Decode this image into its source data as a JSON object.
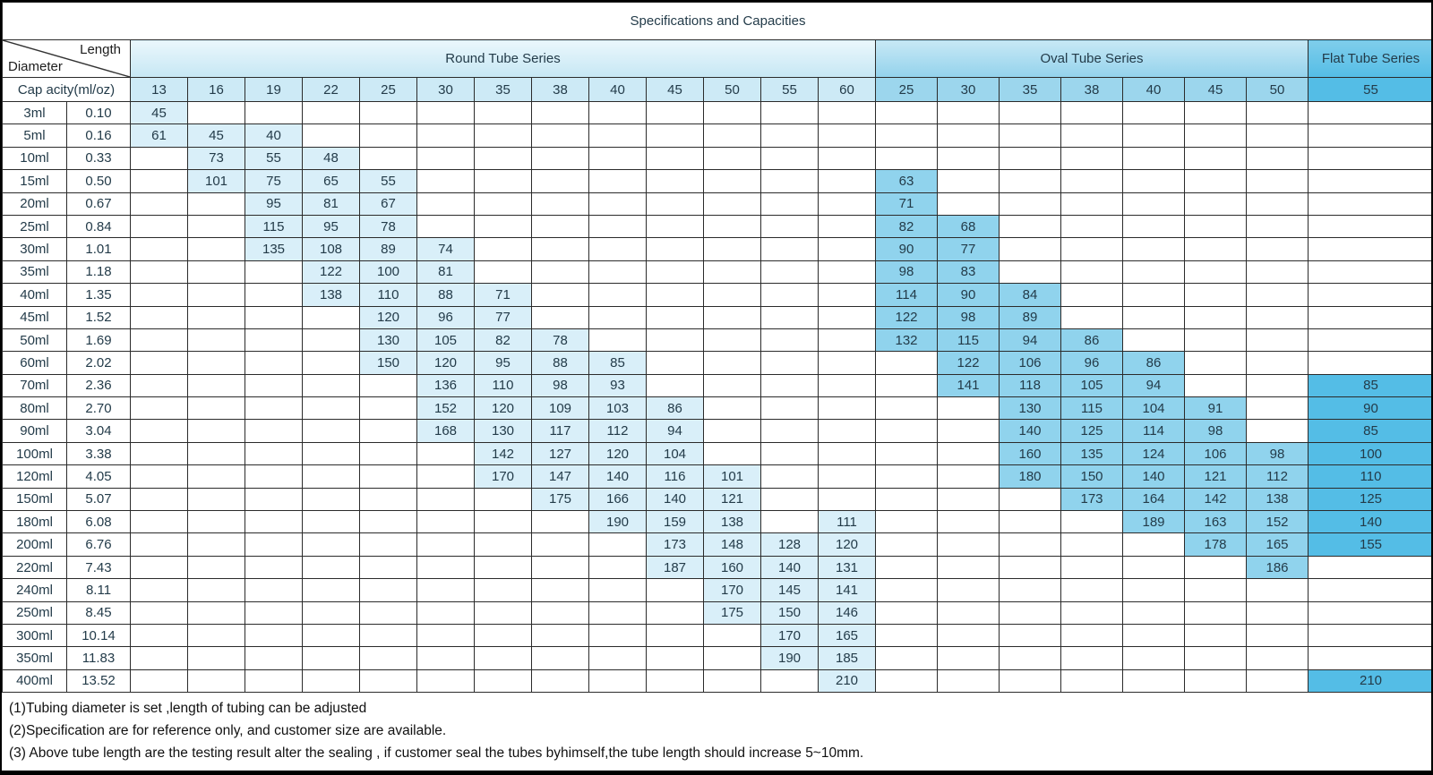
{
  "title": "Specifications and Capacities",
  "corner": {
    "top": "Length",
    "bottom": "Diameter"
  },
  "capacity_label": "Cap acity(ml/oz)",
  "series": [
    {
      "name": "Round Tube Series",
      "key": "round",
      "columns": [
        "13",
        "16",
        "19",
        "22",
        "25",
        "30",
        "35",
        "38",
        "40",
        "45",
        "50",
        "55",
        "60"
      ]
    },
    {
      "name": "Oval Tube Series",
      "key": "oval",
      "columns": [
        "25",
        "30",
        "35",
        "38",
        "40",
        "45",
        "50"
      ]
    },
    {
      "name": "Flat Tube Series",
      "key": "flat",
      "columns": [
        "55"
      ]
    }
  ],
  "rows": [
    {
      "ml": "3ml",
      "oz": "0.10",
      "round": [
        45,
        null,
        null,
        null,
        null,
        null,
        null,
        null,
        null,
        null,
        null,
        null,
        null
      ],
      "oval": [
        null,
        null,
        null,
        null,
        null,
        null,
        null
      ],
      "flat": [
        null
      ]
    },
    {
      "ml": "5ml",
      "oz": "0.16",
      "round": [
        61,
        45,
        40,
        null,
        null,
        null,
        null,
        null,
        null,
        null,
        null,
        null,
        null
      ],
      "oval": [
        null,
        null,
        null,
        null,
        null,
        null,
        null
      ],
      "flat": [
        null
      ]
    },
    {
      "ml": "10ml",
      "oz": "0.33",
      "round": [
        null,
        73,
        55,
        48,
        null,
        null,
        null,
        null,
        null,
        null,
        null,
        null,
        null
      ],
      "oval": [
        null,
        null,
        null,
        null,
        null,
        null,
        null
      ],
      "flat": [
        null
      ]
    },
    {
      "ml": "15ml",
      "oz": "0.50",
      "round": [
        null,
        101,
        75,
        65,
        55,
        null,
        null,
        null,
        null,
        null,
        null,
        null,
        null
      ],
      "oval": [
        63,
        null,
        null,
        null,
        null,
        null,
        null
      ],
      "flat": [
        null
      ]
    },
    {
      "ml": "20ml",
      "oz": "0.67",
      "round": [
        null,
        null,
        95,
        81,
        67,
        null,
        null,
        null,
        null,
        null,
        null,
        null,
        null
      ],
      "oval": [
        71,
        null,
        null,
        null,
        null,
        null,
        null
      ],
      "flat": [
        null
      ]
    },
    {
      "ml": "25ml",
      "oz": "0.84",
      "round": [
        null,
        null,
        115,
        95,
        78,
        null,
        null,
        null,
        null,
        null,
        null,
        null,
        null
      ],
      "oval": [
        82,
        68,
        null,
        null,
        null,
        null,
        null
      ],
      "flat": [
        null
      ]
    },
    {
      "ml": "30ml",
      "oz": "1.01",
      "round": [
        null,
        null,
        135,
        108,
        89,
        74,
        null,
        null,
        null,
        null,
        null,
        null,
        null
      ],
      "oval": [
        90,
        77,
        null,
        null,
        null,
        null,
        null
      ],
      "flat": [
        null
      ]
    },
    {
      "ml": "35ml",
      "oz": "1.18",
      "round": [
        null,
        null,
        null,
        122,
        100,
        81,
        null,
        null,
        null,
        null,
        null,
        null,
        null
      ],
      "oval": [
        98,
        83,
        null,
        null,
        null,
        null,
        null
      ],
      "flat": [
        null
      ]
    },
    {
      "ml": "40ml",
      "oz": "1.35",
      "round": [
        null,
        null,
        null,
        138,
        110,
        88,
        71,
        null,
        null,
        null,
        null,
        null,
        null
      ],
      "oval": [
        114,
        90,
        84,
        null,
        null,
        null,
        null
      ],
      "flat": [
        null
      ]
    },
    {
      "ml": "45ml",
      "oz": "1.52",
      "round": [
        null,
        null,
        null,
        null,
        120,
        96,
        77,
        null,
        null,
        null,
        null,
        null,
        null
      ],
      "oval": [
        122,
        98,
        89,
        null,
        null,
        null,
        null
      ],
      "flat": [
        null
      ]
    },
    {
      "ml": "50ml",
      "oz": "1.69",
      "round": [
        null,
        null,
        null,
        null,
        130,
        105,
        82,
        78,
        null,
        null,
        null,
        null,
        null
      ],
      "oval": [
        132,
        115,
        94,
        86,
        null,
        null,
        null
      ],
      "flat": [
        null
      ]
    },
    {
      "ml": "60ml",
      "oz": "2.02",
      "round": [
        null,
        null,
        null,
        null,
        150,
        120,
        95,
        88,
        85,
        null,
        null,
        null,
        null
      ],
      "oval": [
        null,
        122,
        106,
        96,
        86,
        null,
        null
      ],
      "flat": [
        null
      ]
    },
    {
      "ml": "70ml",
      "oz": "2.36",
      "round": [
        null,
        null,
        null,
        null,
        null,
        136,
        110,
        98,
        93,
        null,
        null,
        null,
        null
      ],
      "oval": [
        null,
        141,
        118,
        105,
        94,
        null,
        null
      ],
      "flat": [
        85
      ]
    },
    {
      "ml": "80ml",
      "oz": "2.70",
      "round": [
        null,
        null,
        null,
        null,
        null,
        152,
        120,
        109,
        103,
        86,
        null,
        null,
        null
      ],
      "oval": [
        null,
        null,
        130,
        115,
        104,
        91,
        null
      ],
      "flat": [
        90
      ]
    },
    {
      "ml": "90ml",
      "oz": "3.04",
      "round": [
        null,
        null,
        null,
        null,
        null,
        168,
        130,
        117,
        112,
        94,
        null,
        null,
        null
      ],
      "oval": [
        null,
        null,
        140,
        125,
        114,
        98,
        null
      ],
      "flat": [
        85
      ]
    },
    {
      "ml": "100ml",
      "oz": "3.38",
      "round": [
        null,
        null,
        null,
        null,
        null,
        null,
        142,
        127,
        120,
        104,
        null,
        null,
        null
      ],
      "oval": [
        null,
        null,
        160,
        135,
        124,
        106,
        98
      ],
      "flat": [
        100
      ]
    },
    {
      "ml": "120ml",
      "oz": "4.05",
      "round": [
        null,
        null,
        null,
        null,
        null,
        null,
        170,
        147,
        140,
        116,
        101,
        null,
        null
      ],
      "oval": [
        null,
        null,
        180,
        150,
        140,
        121,
        112
      ],
      "flat": [
        110
      ]
    },
    {
      "ml": "150ml",
      "oz": "5.07",
      "round": [
        null,
        null,
        null,
        null,
        null,
        null,
        null,
        175,
        166,
        140,
        121,
        null,
        null
      ],
      "oval": [
        null,
        null,
        null,
        173,
        164,
        142,
        138
      ],
      "flat": [
        125
      ]
    },
    {
      "ml": "180ml",
      "oz": "6.08",
      "round": [
        null,
        null,
        null,
        null,
        null,
        null,
        null,
        null,
        190,
        159,
        138,
        null,
        111
      ],
      "oval": [
        null,
        null,
        null,
        null,
        189,
        163,
        152
      ],
      "flat": [
        140
      ]
    },
    {
      "ml": "200ml",
      "oz": "6.76",
      "round": [
        null,
        null,
        null,
        null,
        null,
        null,
        null,
        null,
        null,
        173,
        148,
        128,
        120
      ],
      "oval": [
        null,
        null,
        null,
        null,
        null,
        178,
        165
      ],
      "flat": [
        155
      ]
    },
    {
      "ml": "220ml",
      "oz": "7.43",
      "round": [
        null,
        null,
        null,
        null,
        null,
        null,
        null,
        null,
        null,
        187,
        160,
        140,
        131
      ],
      "oval": [
        null,
        null,
        null,
        null,
        null,
        null,
        186
      ],
      "flat": [
        null
      ]
    },
    {
      "ml": "240ml",
      "oz": "8.11",
      "round": [
        null,
        null,
        null,
        null,
        null,
        null,
        null,
        null,
        null,
        null,
        170,
        145,
        141
      ],
      "oval": [
        null,
        null,
        null,
        null,
        null,
        null,
        null
      ],
      "flat": [
        null
      ]
    },
    {
      "ml": "250ml",
      "oz": "8.45",
      "round": [
        null,
        null,
        null,
        null,
        null,
        null,
        null,
        null,
        null,
        null,
        175,
        150,
        146
      ],
      "oval": [
        null,
        null,
        null,
        null,
        null,
        null,
        null
      ],
      "flat": [
        null
      ]
    },
    {
      "ml": "300ml",
      "oz": "10.14",
      "round": [
        null,
        null,
        null,
        null,
        null,
        null,
        null,
        null,
        null,
        null,
        null,
        170,
        165
      ],
      "oval": [
        null,
        null,
        null,
        null,
        null,
        null,
        null
      ],
      "flat": [
        null
      ]
    },
    {
      "ml": "350ml",
      "oz": "11.83",
      "round": [
        null,
        null,
        null,
        null,
        null,
        null,
        null,
        null,
        null,
        null,
        null,
        190,
        185
      ],
      "oval": [
        null,
        null,
        null,
        null,
        null,
        null,
        null
      ],
      "flat": [
        null
      ]
    },
    {
      "ml": "400ml",
      "oz": "13.52",
      "round": [
        null,
        null,
        null,
        null,
        null,
        null,
        null,
        null,
        null,
        null,
        null,
        null,
        210
      ],
      "oval": [
        null,
        null,
        null,
        null,
        null,
        null,
        null
      ],
      "flat": [
        210
      ]
    }
  ],
  "notes": [
    "(1)Tubing diameter is set ,length of tubing can be adjusted",
    "(2)Specification are for reference only, and customer size are available.",
    "(3) Above tube length are the testing result alter the sealing , if customer seal the tubes byhimself,the tube length should increase 5~10mm."
  ],
  "colors": {
    "round_header": "#cdeaf6",
    "round_fill": "#d9eff9",
    "oval_header": "#9cd6ed",
    "oval_fill": "#90d3ed",
    "flat_fill": "#54bde6",
    "grid_line": "#2b2b2b"
  }
}
